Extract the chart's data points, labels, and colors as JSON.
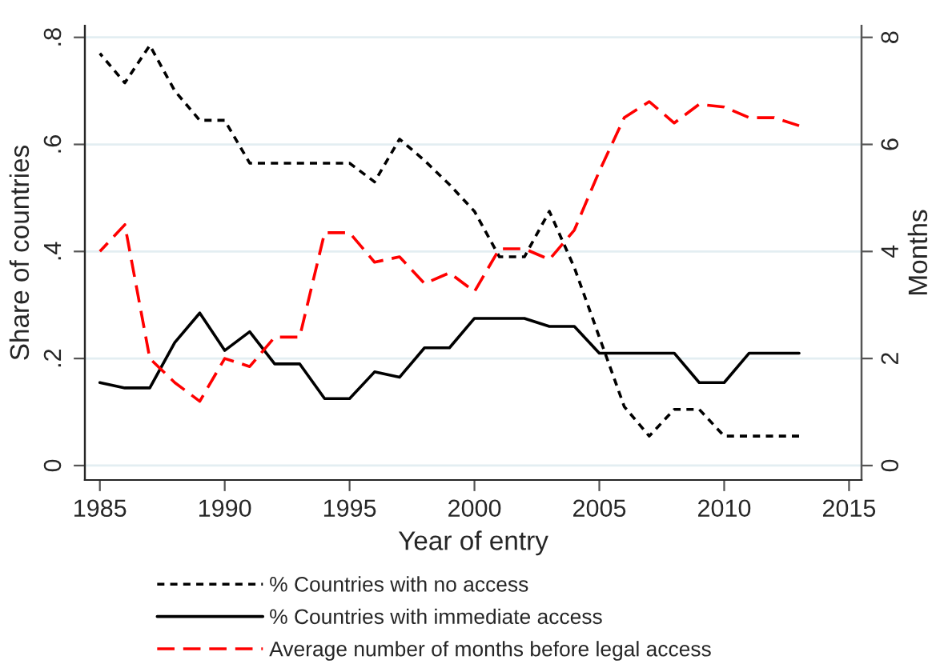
{
  "chart_data": {
    "type": "line",
    "xlabel": "Year of entry",
    "ylabel": "Share of countries",
    "y2label": "Months",
    "x": [
      1985,
      1986,
      1987,
      1988,
      1989,
      1990,
      1991,
      1992,
      1993,
      1994,
      1995,
      1996,
      1997,
      1998,
      1999,
      2000,
      2001,
      2002,
      2003,
      2004,
      2005,
      2006,
      2007,
      2008,
      2009,
      2010,
      2011,
      2012,
      2013
    ],
    "series": [
      {
        "name": "% Countries with no access",
        "color": "#000000",
        "line_style": "dotted",
        "values": [
          0.77,
          0.715,
          0.785,
          0.7,
          0.645,
          0.645,
          0.565,
          0.565,
          0.565,
          0.565,
          0.565,
          0.53,
          0.61,
          0.57,
          0.525,
          0.475,
          0.39,
          0.39,
          0.475,
          0.37,
          0.24,
          0.11,
          0.055,
          0.105,
          0.105,
          0.055,
          0.055,
          0.055,
          0.055
        ]
      },
      {
        "name": "% Countries with immediate access",
        "color": "#000000",
        "line_style": "solid",
        "values": [
          0.155,
          0.145,
          0.145,
          0.23,
          0.285,
          0.215,
          0.25,
          0.19,
          0.19,
          0.125,
          0.125,
          0.175,
          0.165,
          0.22,
          0.22,
          0.275,
          0.275,
          0.275,
          0.26,
          0.26,
          0.21,
          0.21,
          0.21,
          0.21,
          0.155,
          0.155,
          0.21,
          0.21,
          0.21
        ]
      },
      {
        "name": "Average number of months before legal access",
        "color": "#ff0000",
        "line_style": "dashed",
        "axis": "y2",
        "values": [
          4.0,
          4.5,
          2.0,
          1.55,
          1.2,
          2.0,
          1.85,
          2.4,
          2.4,
          4.35,
          4.35,
          3.8,
          3.9,
          3.4,
          3.6,
          3.25,
          4.05,
          4.05,
          3.85,
          4.4,
          5.5,
          6.5,
          6.8,
          6.4,
          6.75,
          6.7,
          6.5,
          6.5,
          6.35
        ]
      }
    ],
    "xlim": [
      1984.4,
      2015.5
    ],
    "xticks": [
      1985,
      1990,
      1995,
      2000,
      2005,
      2010,
      2015
    ],
    "ylim": [
      -0.027,
      0.822
    ],
    "yticks": [
      {
        "value": 0,
        "label": "0"
      },
      {
        "value": 0.2,
        "label": ".2"
      },
      {
        "value": 0.4,
        "label": ".4"
      },
      {
        "value": 0.6,
        "label": ".6"
      },
      {
        "value": 0.8,
        "label": ".8"
      }
    ],
    "y2lim": [
      -0.27,
      8.22
    ],
    "y2ticks": [
      0,
      2,
      4,
      6,
      8
    ],
    "grid": "y",
    "legend": "bottom",
    "marker": "none"
  }
}
